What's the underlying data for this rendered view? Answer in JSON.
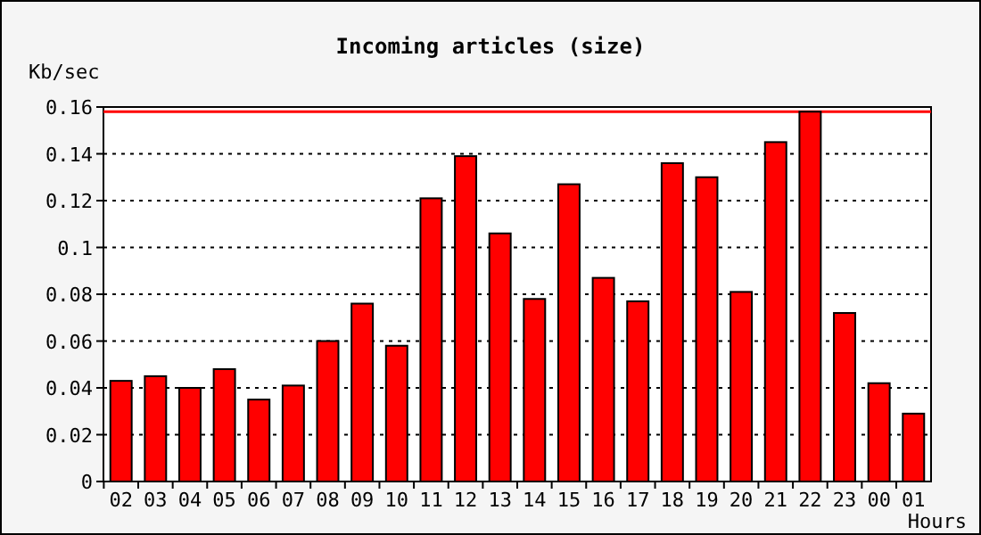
{
  "chart_data": {
    "type": "bar",
    "title": "Incoming articles (size)",
    "ylabel": "Kb/sec",
    "xlabel": "Hours",
    "categories": [
      "02",
      "03",
      "04",
      "05",
      "06",
      "07",
      "08",
      "09",
      "10",
      "11",
      "12",
      "13",
      "14",
      "15",
      "16",
      "17",
      "18",
      "19",
      "20",
      "21",
      "22",
      "23",
      "00",
      "01"
    ],
    "values": [
      0.043,
      0.045,
      0.04,
      0.048,
      0.035,
      0.041,
      0.06,
      0.076,
      0.058,
      0.121,
      0.139,
      0.106,
      0.078,
      0.127,
      0.087,
      0.077,
      0.136,
      0.13,
      0.081,
      0.145,
      0.158,
      0.072,
      0.042,
      0.029
    ],
    "color": "#ff0000",
    "ylim": [
      0,
      0.16
    ],
    "yticks": [
      0,
      0.02,
      0.04,
      0.06,
      0.08,
      {
        "value": 0.1,
        "label": "0.1"
      },
      0.12,
      0.14,
      0.16
    ],
    "grid": "y",
    "ref_lines": [
      {
        "axis": "y",
        "value": 0.158,
        "color": "#ff0000"
      }
    ]
  }
}
